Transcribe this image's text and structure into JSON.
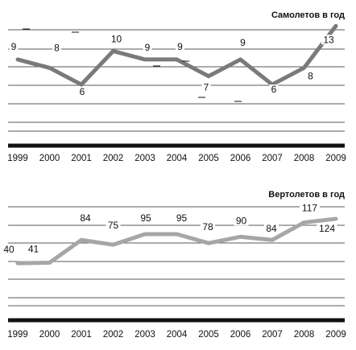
{
  "chart_data": [
    {
      "type": "line",
      "title": "Самолетов в год",
      "x": [
        "1999",
        "2000",
        "2001",
        "2002",
        "2003",
        "2004",
        "2005",
        "2006",
        "2007",
        "2008",
        "2009"
      ],
      "series": [
        {
          "values": [
            9,
            8,
            6,
            10,
            9,
            9,
            7,
            9,
            6,
            8,
            13
          ],
          "color": "#7a7a7a"
        }
      ],
      "data_labels": [
        "9",
        "8",
        "6",
        "10",
        "9",
        "9",
        "7",
        "9",
        "6",
        "8",
        "13"
      ],
      "ylim": [
        3,
        14
      ],
      "grid": true
    },
    {
      "type": "line",
      "title": "Вертолетов в год",
      "x": [
        "1999",
        "2000",
        "2001",
        "2002",
        "2003",
        "2004",
        "2005",
        "2006",
        "2007",
        "2008",
        "2009"
      ],
      "series": [
        {
          "values": [
            40,
            41,
            84,
            75,
            95,
            95,
            78,
            90,
            84,
            117,
            124
          ],
          "color": "#a6a6a6"
        }
      ],
      "data_labels": [
        "40",
        "41",
        "84",
        "75",
        "95",
        "95",
        "78",
        "90",
        "84",
        "117",
        "124"
      ],
      "ylim": [
        20,
        150
      ],
      "grid": true
    }
  ]
}
